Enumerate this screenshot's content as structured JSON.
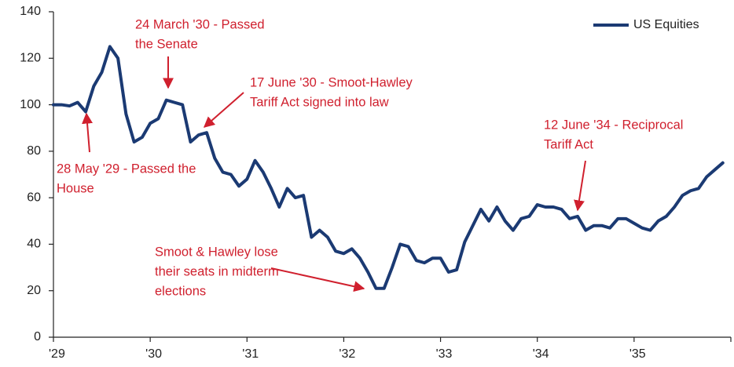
{
  "chart_data": {
    "type": "line",
    "categories": [
      "'29",
      null,
      null,
      null,
      null,
      null,
      null,
      null,
      null,
      null,
      null,
      null,
      "'30",
      null,
      null,
      null,
      null,
      null,
      null,
      null,
      null,
      null,
      null,
      null,
      "'31",
      null,
      null,
      null,
      null,
      null,
      null,
      null,
      null,
      null,
      null,
      null,
      "'32",
      null,
      null,
      null,
      null,
      null,
      null,
      null,
      null,
      null,
      null,
      null,
      "'33",
      null,
      null,
      null,
      null,
      null,
      null,
      null,
      null,
      null,
      null,
      null,
      "'34",
      null,
      null,
      null,
      null,
      null,
      null,
      null,
      null,
      null,
      null,
      null,
      "'35",
      null,
      null,
      null,
      null,
      null,
      null,
      null,
      null,
      null,
      null,
      null
    ],
    "series": [
      {
        "name": "US Equities",
        "color": "#1b3a73",
        "values": [
          100,
          100,
          99.5,
          101,
          97,
          108,
          114,
          125,
          120,
          96,
          84,
          86,
          92,
          94,
          102,
          101,
          100,
          84,
          87,
          88,
          77,
          71,
          70,
          65,
          68,
          76,
          71,
          64,
          56,
          64,
          60,
          61,
          43,
          46,
          43,
          37,
          36,
          38,
          34,
          28,
          21,
          21,
          30,
          40,
          39,
          33,
          32,
          34,
          34,
          28,
          29,
          41,
          48,
          55,
          50,
          56,
          50,
          46,
          51,
          52,
          57,
          56,
          56,
          55,
          51,
          52,
          46,
          48,
          48,
          47,
          51,
          51,
          49,
          47,
          46,
          50,
          52,
          56,
          61,
          63,
          64,
          69,
          72,
          75
        ]
      }
    ],
    "ylim": [
      0,
      140
    ],
    "yticks": [
      0,
      20,
      40,
      60,
      80,
      100,
      120,
      140
    ],
    "legend": "top-right",
    "annotations": [
      {
        "lines": [
          "24 March '30 - Passed",
          "the Senate"
        ]
      },
      {
        "lines": [
          "17 June '30 - Smoot-Hawley",
          "Tariff Act signed into law"
        ]
      },
      {
        "lines": [
          "28 May '29 - Passed the",
          "House"
        ]
      },
      {
        "lines": [
          "12 June '34 - Reciprocal",
          "Tariff Act"
        ]
      },
      {
        "lines": [
          "Smoot & Hawley lose",
          "their seats in midterm",
          "elections"
        ]
      }
    ],
    "annotation_color": "#d0202e"
  }
}
